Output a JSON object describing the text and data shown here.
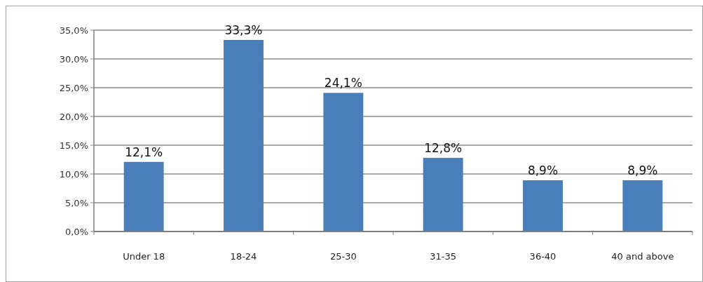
{
  "chart_data": {
    "type": "bar",
    "categories": [
      "Under 18",
      "18-24",
      "25-30",
      "31-35",
      "36-40",
      "40 and above"
    ],
    "values": [
      12.1,
      33.3,
      24.1,
      12.8,
      8.9,
      8.9
    ],
    "color": "#4a7ebb",
    "value_labels": [
      "12,1%",
      "33,3%",
      "24,1%",
      "12,8%",
      "8,9%",
      "8,9%"
    ],
    "ylim": [
      0,
      35
    ],
    "yticks": [
      {
        "value": 0,
        "label": "0,0%"
      },
      {
        "value": 5,
        "label": "5,0%"
      },
      {
        "value": 10,
        "label": "10,0%"
      },
      {
        "value": 15,
        "label": "15,0%"
      },
      {
        "value": 20,
        "label": "20,0%"
      },
      {
        "value": 25,
        "label": "25,0%"
      },
      {
        "value": 30,
        "label": "30,0%"
      },
      {
        "value": 35,
        "label": "35,0%"
      }
    ],
    "grid": "y"
  }
}
